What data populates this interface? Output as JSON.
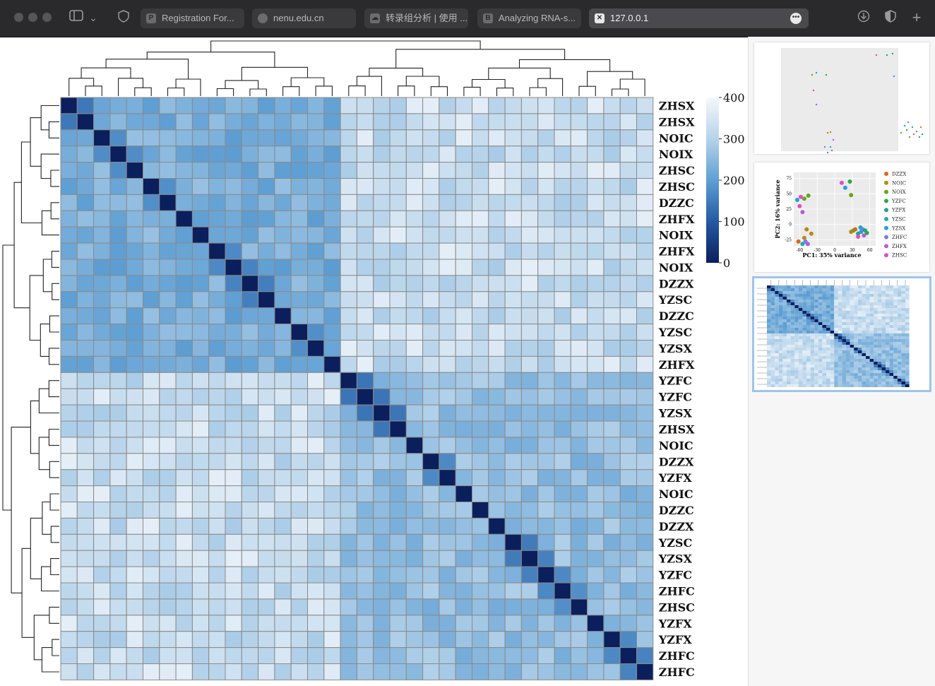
{
  "browser": {
    "tabs": [
      {
        "label": "Registration For...",
        "favicon": "P"
      },
      {
        "label": "nenu.edu.cn",
        "favicon": ""
      },
      {
        "label": "转录组分析 | 使用 ...",
        "favicon": "☁"
      },
      {
        "label": "Analyzing RNA-s...",
        "favicon": "B"
      },
      {
        "label": "127.0.0.1",
        "favicon": "✕",
        "active": true
      }
    ]
  },
  "heatmap": {
    "row_labels": [
      "ZHSX",
      "ZHSX",
      "NOIC",
      "NOIX",
      "ZHSC",
      "ZHSC",
      "DZZC",
      "ZHFX",
      "NOIX",
      "ZHFX",
      "NOIX",
      "DZZX",
      "YZSC",
      "DZZC",
      "YZSC",
      "YZSX",
      "ZHFX",
      "YZFC",
      "YZFC",
      "YZSX",
      "ZHSX",
      "NOIC",
      "DZZX",
      "YZFX",
      "NOIC",
      "DZZC",
      "DZZX",
      "YZSC",
      "YZSX",
      "YZFC",
      "ZHFC",
      "ZHSC",
      "YZFX",
      "YZFX",
      "ZHFC",
      "ZHFC"
    ],
    "legend": {
      "ticks": [
        "400",
        "300",
        "200",
        "100",
        "0"
      ],
      "values": [
        400,
        300,
        200,
        100,
        0
      ]
    },
    "colors": {
      "low": "#0b1f5c",
      "mid": "#3f86c6",
      "high": "#f3f7fc",
      "grid": "#8a8a8a"
    }
  },
  "side_panel": {
    "pca": {
      "xlabel": "PC1: 35% variance",
      "ylabel": "PC2: 16% variance",
      "x_ticks": [
        "-60",
        "-30",
        "0",
        "30",
        "60"
      ],
      "y_ticks": [
        "75",
        "50",
        "25",
        "0",
        "-25"
      ],
      "legend": [
        {
          "name": "DZZX",
          "color": "#d9661f"
        },
        {
          "name": "NOIC",
          "color": "#b88a12"
        },
        {
          "name": "NOIX",
          "color": "#6aa21e"
        },
        {
          "name": "YZFC",
          "color": "#2fa54a"
        },
        {
          "name": "YZFX",
          "color": "#22a57f"
        },
        {
          "name": "YZSC",
          "color": "#20a9b0"
        },
        {
          "name": "YZSX",
          "color": "#2b9be0"
        },
        {
          "name": "ZHFC",
          "color": "#7a7de6"
        },
        {
          "name": "ZHFX",
          "color": "#b25ce0"
        },
        {
          "name": "ZHSC",
          "color": "#e04fc0"
        }
      ]
    }
  }
}
